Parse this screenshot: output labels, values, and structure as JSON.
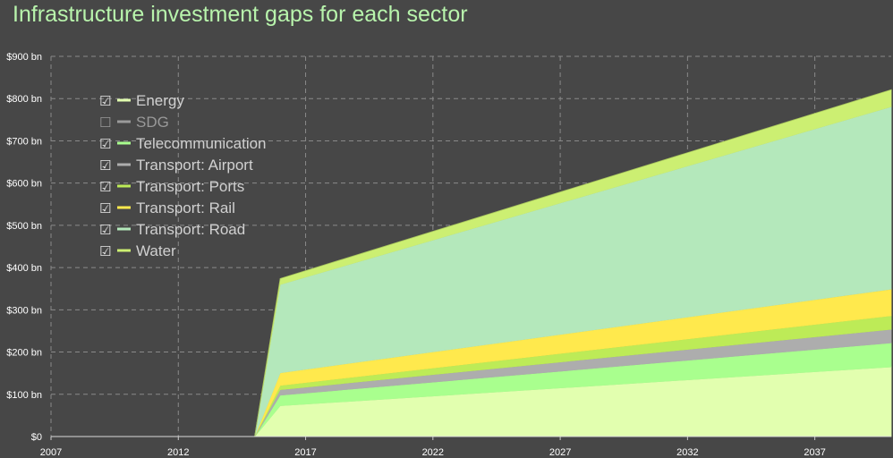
{
  "chart_data": {
    "type": "area",
    "stacked": true,
    "title": "Infrastructure investment gaps for each sector",
    "xlabel": "",
    "ylabel": "",
    "xlim": [
      2007,
      2040
    ],
    "ylim": [
      0,
      900
    ],
    "x_ticks": [
      "2007",
      "2012",
      "2017",
      "2022",
      "2027",
      "2032",
      "2037"
    ],
    "y_ticks": [
      "$0",
      "$100 bn",
      "$200 bn",
      "$300 bn",
      "$400 bn",
      "$500 bn",
      "$600 bn",
      "$700 bn",
      "$800 bn",
      "$900 bn"
    ],
    "grid": true,
    "legend_position": "top-left",
    "x": [
      2007,
      2015,
      2016,
      2040
    ],
    "series": [
      {
        "name": "Energy",
        "checked": true,
        "color": "#e2ffaf",
        "values": [
          0,
          0,
          73,
          165
        ]
      },
      {
        "name": "SDG",
        "checked": false,
        "color": "#9a9a9a",
        "values": [
          0,
          0,
          0,
          0
        ]
      },
      {
        "name": "Telecommunication",
        "checked": true,
        "color": "#a9ff8e",
        "values": [
          0,
          0,
          25,
          57
        ]
      },
      {
        "name": "Transport: Airport",
        "checked": true,
        "color": "#adadad",
        "values": [
          0,
          0,
          13,
          32
        ]
      },
      {
        "name": "Transport: Ports",
        "checked": true,
        "color": "#bdeb57",
        "values": [
          0,
          0,
          10,
          32
        ]
      },
      {
        "name": "Transport: Rail",
        "checked": true,
        "color": "#ffe94d",
        "values": [
          0,
          0,
          30,
          63
        ]
      },
      {
        "name": "Transport: Road",
        "checked": true,
        "color": "#b4e8bb",
        "values": [
          0,
          0,
          209,
          432
        ]
      },
      {
        "name": "Water",
        "checked": true,
        "color": "#ccef72",
        "values": [
          0,
          0,
          14,
          40
        ]
      }
    ]
  },
  "legend": {
    "checked_glyph": "☑",
    "unchecked_glyph": "☐",
    "text_color": "#d0d0d0",
    "disabled_color": "#999999"
  }
}
